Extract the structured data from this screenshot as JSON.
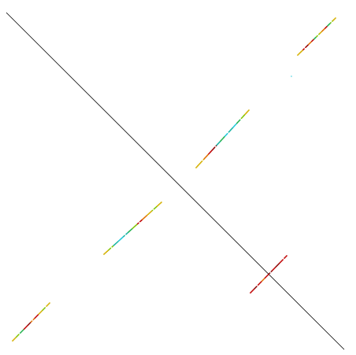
{
  "diagram": {
    "background": "#ffffff",
    "diagonal_color": "#000000",
    "palette": {
      "yellow": "#d4b000",
      "lime": "#7fc400",
      "green": "#22b14c",
      "teal": "#17b3a3",
      "cyan": "#1ec8d8",
      "orange": "#e07000",
      "red": "#c00000",
      "darkred": "#8b0000"
    }
  }
}
